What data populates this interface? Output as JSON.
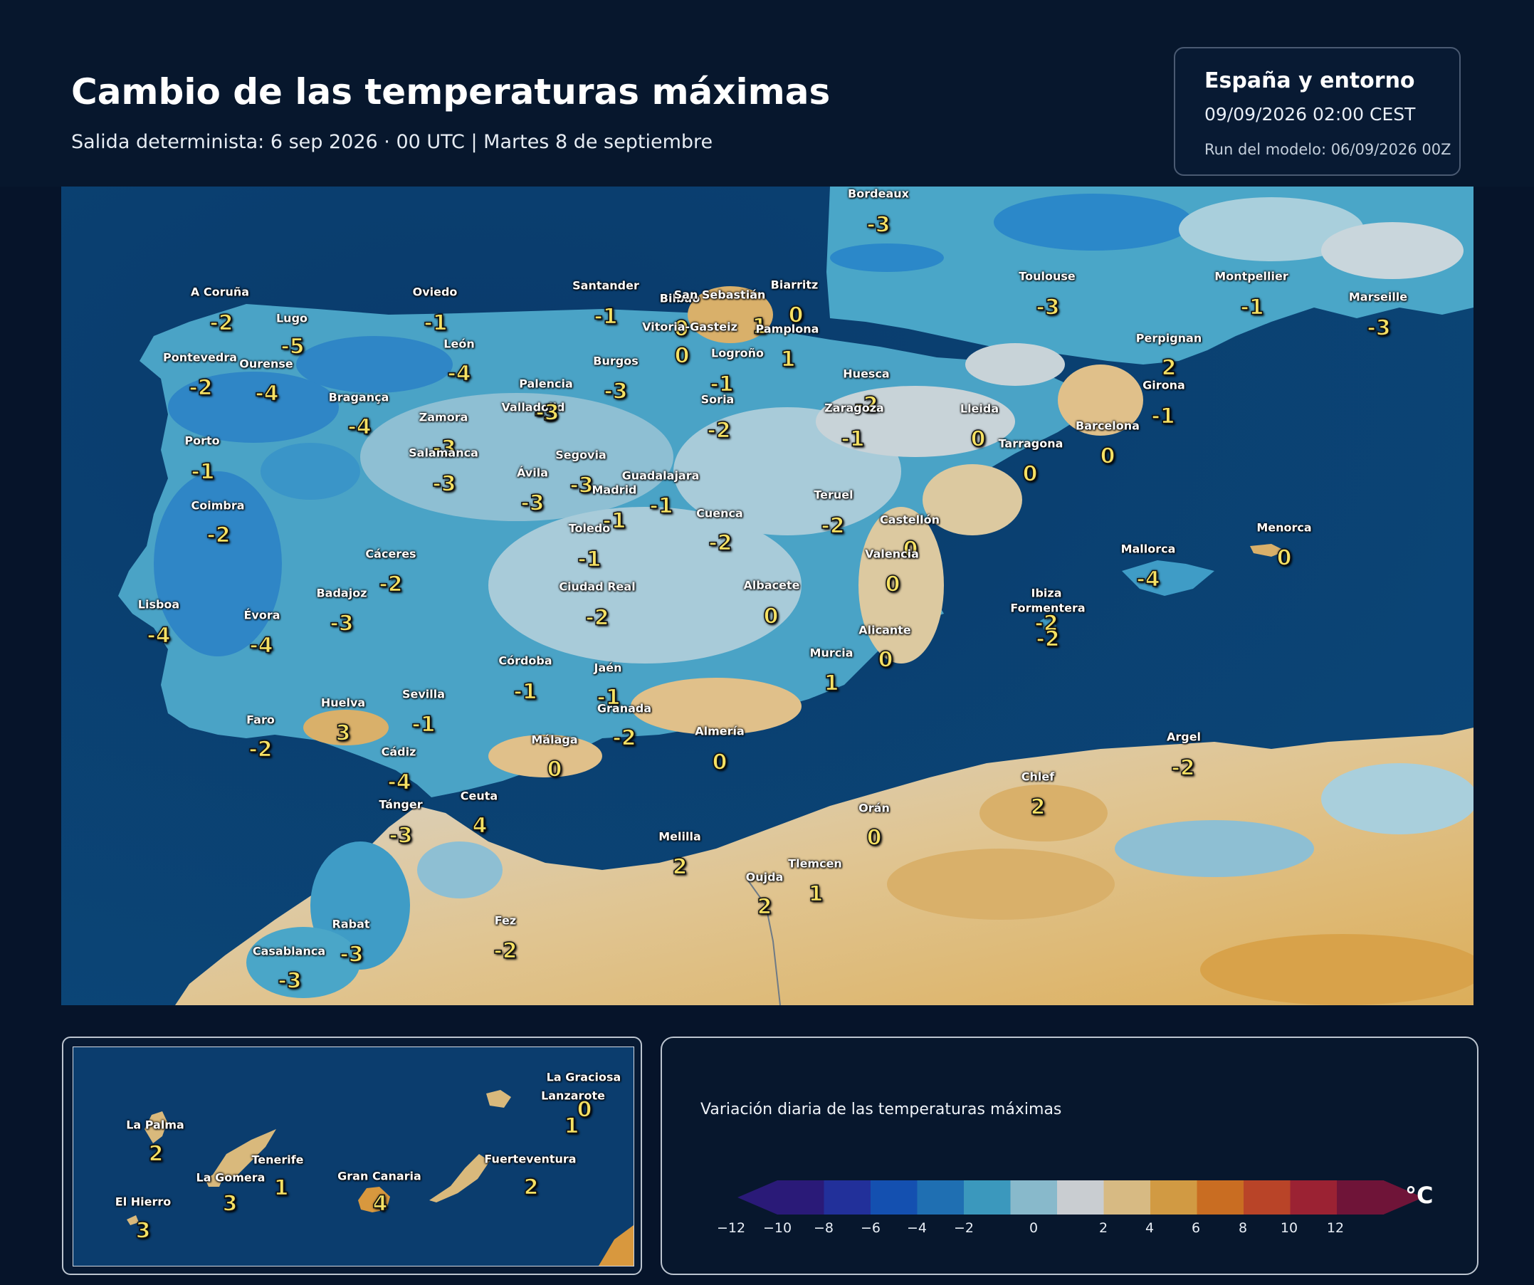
{
  "header": {
    "title": "Cambio de las temperaturas máximas",
    "subtitle": "Salida determinista: 6 sep 2026 · 00 UTC  |  Martes 8 de septiembre"
  },
  "info": {
    "region": "España y entorno",
    "valid": "09/09/2026  02:00 CEST",
    "run": "Run del modelo: 06/09/2026 00Z"
  },
  "map": {
    "cities": [
      {
        "name": "Bordeaux",
        "value": "-3"
      },
      {
        "name": "A Coruña",
        "value": "-2"
      },
      {
        "name": "Lugo",
        "value": "-5"
      },
      {
        "name": "Oviedo",
        "value": "-1"
      },
      {
        "name": "Santander",
        "value": "-1"
      },
      {
        "name": "Bilbao",
        "value": "0"
      },
      {
        "name": "Biarritz",
        "value": "0"
      },
      {
        "name": "San Sebastián",
        "value": "1"
      },
      {
        "name": "Vitoria-Gasteiz",
        "value": "0"
      },
      {
        "name": "Pamplona",
        "value": "1"
      },
      {
        "name": "Logroño",
        "value": "-1"
      },
      {
        "name": "Toulouse",
        "value": "-3"
      },
      {
        "name": "Montpellier",
        "value": "-1"
      },
      {
        "name": "Marseille",
        "value": "-3"
      },
      {
        "name": "Pontevedra",
        "value": "-2"
      },
      {
        "name": "Ourense",
        "value": "-4"
      },
      {
        "name": "León",
        "value": "-4"
      },
      {
        "name": "Burgos",
        "value": "-3"
      },
      {
        "name": "Perpignan",
        "value": "2"
      },
      {
        "name": "Palencia",
        "value": "-3"
      },
      {
        "name": "Huesca",
        "value": "-2"
      },
      {
        "name": "Girona",
        "value": "-1"
      },
      {
        "name": "Bragança",
        "value": "-4"
      },
      {
        "name": "Valladolid",
        "value": "-3"
      },
      {
        "name": "Soria",
        "value": "-2"
      },
      {
        "name": "Zaragoza",
        "value": "-1"
      },
      {
        "name": "Lleida",
        "value": "0"
      },
      {
        "name": "Zamora",
        "value": "-3"
      },
      {
        "name": "Barcelona",
        "value": "0"
      },
      {
        "name": "Porto",
        "value": "-1"
      },
      {
        "name": "Tarragona",
        "value": "0"
      },
      {
        "name": "Salamanca",
        "value": "-3"
      },
      {
        "name": "Segovia",
        "value": "-3"
      },
      {
        "name": "Ávila",
        "value": "-3"
      },
      {
        "name": "Guadalajara",
        "value": "-1"
      },
      {
        "name": "Madrid",
        "value": "-1"
      },
      {
        "name": "Teruel",
        "value": "-2"
      },
      {
        "name": "Coimbra",
        "value": "-2"
      },
      {
        "name": "Cuenca",
        "value": "-2"
      },
      {
        "name": "Toledo",
        "value": "-1"
      },
      {
        "name": "Castellón",
        "value": "0"
      },
      {
        "name": "Menorca",
        "value": "0"
      },
      {
        "name": "Cáceres",
        "value": "-2"
      },
      {
        "name": "Valencia",
        "value": "0"
      },
      {
        "name": "Mallorca",
        "value": "-4"
      },
      {
        "name": "Ciudad Real",
        "value": "-2"
      },
      {
        "name": "Albacete",
        "value": "0"
      },
      {
        "name": "Badajoz",
        "value": "-3"
      },
      {
        "name": "Ibiza",
        "value": "-2"
      },
      {
        "name": "Formentera",
        "value": "-2"
      },
      {
        "name": "Lisboa",
        "value": "-4"
      },
      {
        "name": "Évora",
        "value": "-4"
      },
      {
        "name": "Alicante",
        "value": "0"
      },
      {
        "name": "Murcia",
        "value": "1"
      },
      {
        "name": "Córdoba",
        "value": "-1"
      },
      {
        "name": "Jaén",
        "value": "-1"
      },
      {
        "name": "Huelva",
        "value": "3"
      },
      {
        "name": "Sevilla",
        "value": "-1"
      },
      {
        "name": "Granada",
        "value": "-2"
      },
      {
        "name": "Faro",
        "value": "-2"
      },
      {
        "name": "Almería",
        "value": "0"
      },
      {
        "name": "Argel",
        "value": "-2"
      },
      {
        "name": "Málaga",
        "value": "0"
      },
      {
        "name": "Cádiz",
        "value": "-4"
      },
      {
        "name": "Chlef",
        "value": "2"
      },
      {
        "name": "Ceuta",
        "value": "4"
      },
      {
        "name": "Tánger",
        "value": "-3"
      },
      {
        "name": "Orán",
        "value": "0"
      },
      {
        "name": "Melilla",
        "value": "2"
      },
      {
        "name": "Tlemcen",
        "value": "1"
      },
      {
        "name": "Oujda",
        "value": "2"
      },
      {
        "name": "Rabat",
        "value": "-3"
      },
      {
        "name": "Fez",
        "value": "-2"
      },
      {
        "name": "Casablanca",
        "value": "-3"
      }
    ]
  },
  "inset": {
    "islands": [
      {
        "name": "La Graciosa",
        "value": ""
      },
      {
        "name": "Lanzarote",
        "value": "0"
      },
      {
        "name": "La Palma",
        "value": "2"
      },
      {
        "name": "Tenerife",
        "value": "1"
      },
      {
        "name": "Fuerteventura",
        "value": "2"
      },
      {
        "name": "La Gomera",
        "value": "3"
      },
      {
        "name": "Gran Canaria",
        "value": "4"
      },
      {
        "name": "El Hierro",
        "value": "3"
      },
      {
        "name": "",
        "value": "1"
      }
    ]
  },
  "legend": {
    "title": "Variación diaria de las temperaturas máximas",
    "unit": "°C",
    "ticks": [
      "−12",
      "−10",
      "−8",
      "−6",
      "−4",
      "−2",
      "0",
      "2",
      "4",
      "6",
      "8",
      "10",
      "12"
    ],
    "colors": [
      "#2a1a78",
      "#22309a",
      "#1450b0",
      "#1f6fb2",
      "#3b98bd",
      "#88b9cb",
      "#c9cdd1",
      "#d7ba83",
      "#d19a43",
      "#c96d22",
      "#b94428",
      "#9b2233",
      "#6f1438"
    ]
  }
}
